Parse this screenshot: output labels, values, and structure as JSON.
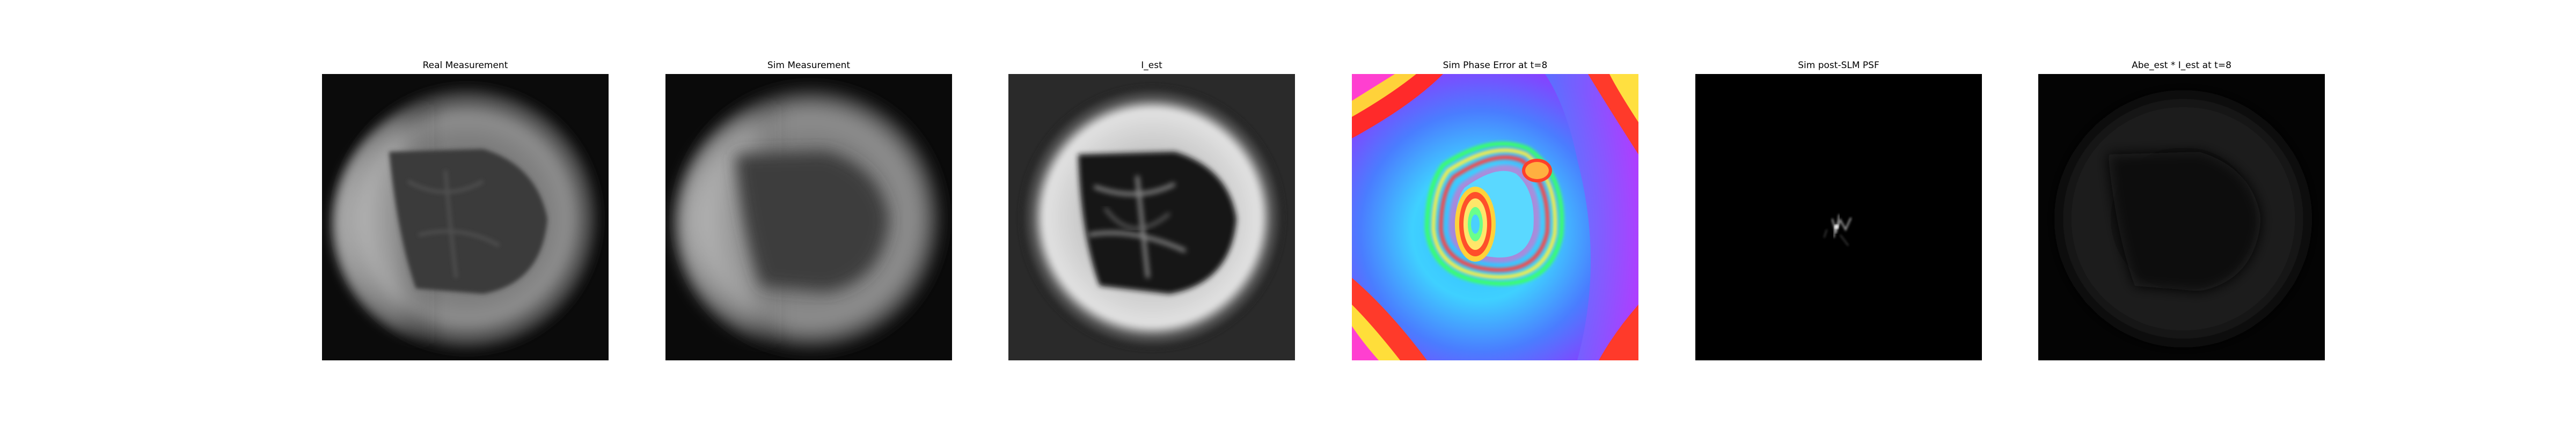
{
  "figure": {
    "panels": [
      {
        "title": "Real Measurement"
      },
      {
        "title": "Sim Measurement"
      },
      {
        "title": "I_est"
      },
      {
        "title": "Sim Phase Error at t=8"
      },
      {
        "title": "Sim post-SLM PSF"
      },
      {
        "title": "Abe_est * I_est at t=8"
      }
    ],
    "colormaps": {
      "grayscale": "gray",
      "phase": "hsv"
    },
    "colors": {
      "background": "#ffffff",
      "image_background": "#000000"
    }
  }
}
